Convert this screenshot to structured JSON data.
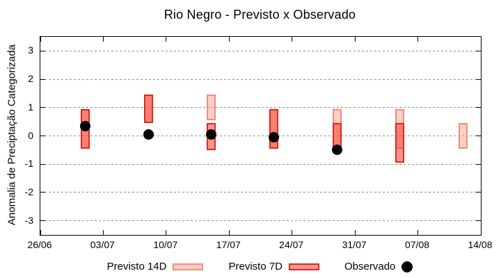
{
  "title": "Rio Negro - Previsto x Observado",
  "colors": {
    "previsto14_fill": "rgba(255,138,120,0.42)",
    "previsto14_border": "#ef8d7b",
    "previsto7_fill": "rgba(246,64,50,0.55)",
    "previsto7_border": "#e3241f",
    "observado": "#000000",
    "grid": "#8f8f8f",
    "frame": "#000000"
  },
  "legend": {
    "previsto14_label": "Previsto 14D",
    "previsto7_label": "Previsto 7D",
    "observado_label": "Observado"
  },
  "chart_data": {
    "type": "bar",
    "subtype": "range-bars-with-scatter-overlay",
    "title": "Rio Negro - Previsto x Observado",
    "xlabel": "",
    "ylabel": "Anomalia de Preciptação Categorizada",
    "ylim": [
      -3.5,
      3.5
    ],
    "y_ticks": [
      3,
      2,
      1,
      0,
      -1,
      -2,
      -3
    ],
    "x_range_days": [
      0,
      49
    ],
    "x_ticks": [
      {
        "day": 0,
        "label": "26/06"
      },
      {
        "day": 7,
        "label": "03/07"
      },
      {
        "day": 14,
        "label": "10/07"
      },
      {
        "day": 21,
        "label": "17/07"
      },
      {
        "day": 28,
        "label": "24/07"
      },
      {
        "day": 35,
        "label": "31/07"
      },
      {
        "day": 42,
        "label": "07/08"
      },
      {
        "day": 49,
        "label": "14/08"
      }
    ],
    "grid": "horizontal-dashed",
    "legend_position": "bottom-center",
    "series": [
      {
        "name": "Previsto 14D",
        "type": "range-bar",
        "points": [
          {
            "date": "01/07",
            "day": 5,
            "low": -0.45,
            "high": 0.95
          },
          {
            "date": "08/07",
            "day": 12,
            "low": 0.45,
            "high": 1.45
          },
          {
            "date": "15/07",
            "day": 19,
            "low": 0.55,
            "high": 1.45
          },
          {
            "date": "22/07",
            "day": 26,
            "low": -0.45,
            "high": 0.95
          },
          {
            "date": "29/07",
            "day": 33,
            "low": -0.45,
            "high": 0.95
          },
          {
            "date": "05/08",
            "day": 40,
            "low": -0.45,
            "high": 0.95
          },
          {
            "date": "12/08",
            "day": 47,
            "low": -0.45,
            "high": 0.45
          }
        ]
      },
      {
        "name": "Previsto 7D",
        "type": "range-bar",
        "points": [
          {
            "date": "01/07",
            "day": 5,
            "low": -0.45,
            "high": 0.95
          },
          {
            "date": "08/07",
            "day": 12,
            "low": 0.45,
            "high": 1.45
          },
          {
            "date": "15/07",
            "day": 19,
            "low": -0.5,
            "high": 0.45
          },
          {
            "date": "22/07",
            "day": 26,
            "low": -0.45,
            "high": 0.95
          },
          {
            "date": "29/07",
            "day": 33,
            "low": -0.45,
            "high": 0.45
          },
          {
            "date": "05/08",
            "day": 40,
            "low": -0.95,
            "high": 0.45
          }
        ]
      },
      {
        "name": "Observado",
        "type": "scatter",
        "points": [
          {
            "date": "01/07",
            "day": 5,
            "value": 0.35
          },
          {
            "date": "08/07",
            "day": 12,
            "value": 0.05
          },
          {
            "date": "15/07",
            "day": 19,
            "value": 0.05
          },
          {
            "date": "22/07",
            "day": 26,
            "value": -0.05
          },
          {
            "date": "29/07",
            "day": 33,
            "value": -0.5
          }
        ]
      }
    ]
  }
}
